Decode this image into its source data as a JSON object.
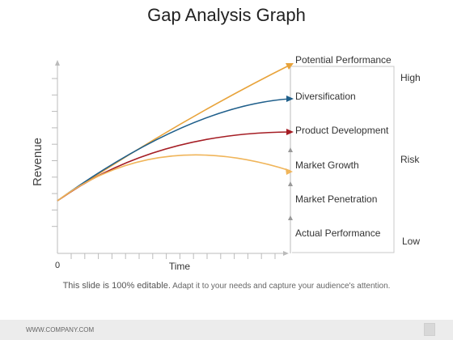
{
  "title": "Gap Analysis Graph",
  "axes": {
    "y_label": "Revenue",
    "x_label": "Time",
    "origin_label": "0"
  },
  "levels": [
    "Potential Performance",
    "Diversification",
    "Product Development",
    "Market Growth",
    "Market Penetration",
    "Actual Performance"
  ],
  "risk_scale": {
    "high": "High",
    "mid": "Risk",
    "low": "Low"
  },
  "curves": [
    {
      "level": "Potential Performance",
      "color": "#e8a33a"
    },
    {
      "level": "Diversification",
      "color": "#1f5f8b"
    },
    {
      "level": "Product Development",
      "color": "#a51d24"
    },
    {
      "level": "Market Growth",
      "color": "#f0b55a"
    }
  ],
  "caption": {
    "strong": "This slide is 100% editable.",
    "rest": "Adapt it to your needs and capture your audience's attention."
  },
  "footer": {
    "website": "WWW.COMPANY.COM"
  }
}
